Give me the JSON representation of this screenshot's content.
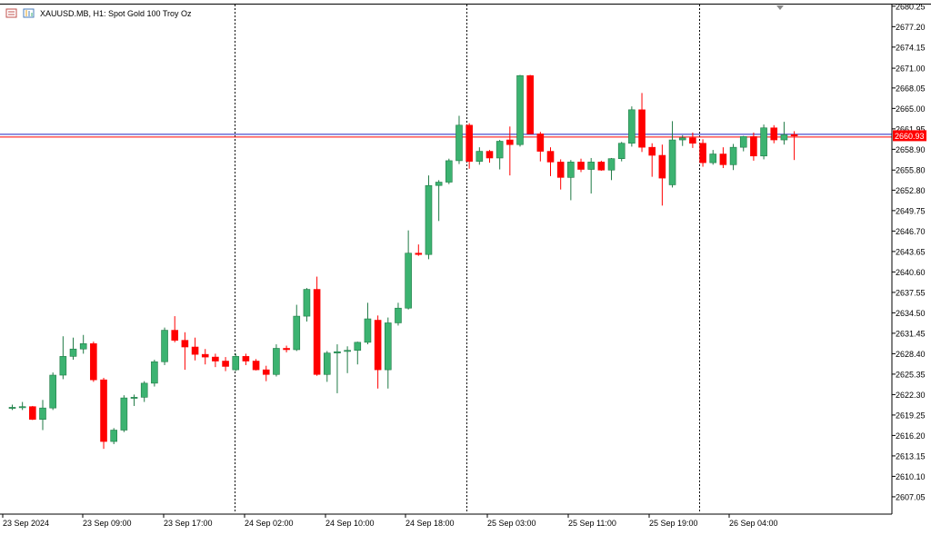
{
  "header": {
    "symbol_label": "XAUUSD.MB, H1:  Spot Gold 100 Troy Oz",
    "icon_name": "chart-window-icon"
  },
  "colors": {
    "bull": "#3cb371",
    "bull_border": "#1f7a45",
    "bear": "#ff0000",
    "grid": "#000000",
    "price_line": "#ff0000",
    "bid_line": "#2020c0",
    "price_tag_bg": "#ff0000",
    "price_tag_text": "#ffffff"
  },
  "current_price": "2660.93",
  "chart_data": {
    "type": "candlestick",
    "timeframe": "H1",
    "ylim": [
      2604.6,
      2680.5
    ],
    "y_ticks": [
      "2680.25",
      "2677.20",
      "2674.15",
      "2671.00",
      "2668.05",
      "2665.00",
      "2661.95",
      "2658.90",
      "2655.80",
      "2652.80",
      "2649.75",
      "2646.70",
      "2643.65",
      "2640.60",
      "2637.55",
      "2634.50",
      "2631.45",
      "2628.40",
      "2625.35",
      "2622.30",
      "2619.25",
      "2616.20",
      "2613.15",
      "2610.10",
      "2607.05"
    ],
    "x_ticks": [
      "23 Sep 2024",
      "23 Sep 09:00",
      "23 Sep 17:00",
      "24 Sep 02:00",
      "24 Sep 10:00",
      "24 Sep 18:00",
      "25 Sep 03:00",
      "25 Sep 11:00",
      "25 Sep 19:00",
      "26 Sep 04:00"
    ],
    "separators": [
      "24 Sep",
      "25 Sep",
      "26 Sep"
    ],
    "candles": [
      {
        "o": 2620.3,
        "h": 2620.8,
        "l": 2620.0,
        "c": 2620.4
      },
      {
        "o": 2620.4,
        "h": 2621.2,
        "l": 2620.0,
        "c": 2620.5
      },
      {
        "o": 2620.5,
        "h": 2620.6,
        "l": 2618.5,
        "c": 2618.6
      },
      {
        "o": 2618.6,
        "h": 2621.5,
        "l": 2617.0,
        "c": 2620.3
      },
      {
        "o": 2620.3,
        "h": 2625.6,
        "l": 2620.0,
        "c": 2625.2
      },
      {
        "o": 2625.2,
        "h": 2631.0,
        "l": 2624.6,
        "c": 2628.0
      },
      {
        "o": 2628.0,
        "h": 2630.8,
        "l": 2627.5,
        "c": 2629.1
      },
      {
        "o": 2629.1,
        "h": 2631.2,
        "l": 2628.4,
        "c": 2629.9
      },
      {
        "o": 2629.9,
        "h": 2630.2,
        "l": 2624.2,
        "c": 2624.5
      },
      {
        "o": 2624.5,
        "h": 2624.8,
        "l": 2614.2,
        "c": 2615.3
      },
      {
        "o": 2615.3,
        "h": 2617.3,
        "l": 2614.9,
        "c": 2617.0
      },
      {
        "o": 2617.0,
        "h": 2622.2,
        "l": 2616.7,
        "c": 2621.8
      },
      {
        "o": 2621.8,
        "h": 2622.3,
        "l": 2620.6,
        "c": 2621.9
      },
      {
        "o": 2621.9,
        "h": 2624.3,
        "l": 2621.2,
        "c": 2624.0
      },
      {
        "o": 2624.0,
        "h": 2627.5,
        "l": 2623.5,
        "c": 2627.2
      },
      {
        "o": 2627.2,
        "h": 2632.3,
        "l": 2626.7,
        "c": 2631.9
      },
      {
        "o": 2631.9,
        "h": 2634.0,
        "l": 2630.1,
        "c": 2630.4
      },
      {
        "o": 2630.4,
        "h": 2631.6,
        "l": 2626.0,
        "c": 2629.4
      },
      {
        "o": 2629.4,
        "h": 2630.8,
        "l": 2627.4,
        "c": 2628.3
      },
      {
        "o": 2628.3,
        "h": 2629.1,
        "l": 2626.8,
        "c": 2627.9
      },
      {
        "o": 2627.9,
        "h": 2628.4,
        "l": 2626.4,
        "c": 2627.3
      },
      {
        "o": 2627.3,
        "h": 2627.9,
        "l": 2625.8,
        "c": 2626.5
      },
      {
        "o": 2626.0,
        "h": 2628.4,
        "l": 2625.8,
        "c": 2628.0
      },
      {
        "o": 2628.0,
        "h": 2628.4,
        "l": 2626.7,
        "c": 2627.3
      },
      {
        "o": 2627.3,
        "h": 2627.6,
        "l": 2625.9,
        "c": 2626.0
      },
      {
        "o": 2626.0,
        "h": 2626.6,
        "l": 2624.3,
        "c": 2625.3
      },
      {
        "o": 2625.3,
        "h": 2629.8,
        "l": 2625.0,
        "c": 2629.2
      },
      {
        "o": 2629.2,
        "h": 2629.6,
        "l": 2628.6,
        "c": 2629.0
      },
      {
        "o": 2629.0,
        "h": 2635.7,
        "l": 2628.8,
        "c": 2634.0
      },
      {
        "o": 2634.0,
        "h": 2638.2,
        "l": 2633.2,
        "c": 2638.0
      },
      {
        "o": 2638.0,
        "h": 2639.9,
        "l": 2625.1,
        "c": 2625.3
      },
      {
        "o": 2625.3,
        "h": 2628.8,
        "l": 2624.2,
        "c": 2628.5
      },
      {
        "o": 2628.5,
        "h": 2629.8,
        "l": 2622.5,
        "c": 2628.7
      },
      {
        "o": 2628.8,
        "h": 2629.5,
        "l": 2625.5,
        "c": 2628.9
      },
      {
        "o": 2628.9,
        "h": 2630.2,
        "l": 2626.8,
        "c": 2630.1
      },
      {
        "o": 2630.1,
        "h": 2636.0,
        "l": 2629.8,
        "c": 2633.6
      },
      {
        "o": 2633.4,
        "h": 2634.1,
        "l": 2623.2,
        "c": 2626.0
      },
      {
        "o": 2626.0,
        "h": 2633.8,
        "l": 2623.2,
        "c": 2633.0
      },
      {
        "o": 2633.0,
        "h": 2636.0,
        "l": 2632.6,
        "c": 2635.2
      },
      {
        "o": 2635.2,
        "h": 2646.8,
        "l": 2635.0,
        "c": 2643.4
      },
      {
        "o": 2643.4,
        "h": 2644.7,
        "l": 2643.0,
        "c": 2643.2
      },
      {
        "o": 2643.2,
        "h": 2655.0,
        "l": 2642.5,
        "c": 2653.5
      },
      {
        "o": 2653.5,
        "h": 2654.3,
        "l": 2648.2,
        "c": 2654.0
      },
      {
        "o": 2654.0,
        "h": 2657.5,
        "l": 2653.7,
        "c": 2657.2
      },
      {
        "o": 2657.2,
        "h": 2663.9,
        "l": 2656.7,
        "c": 2662.5
      },
      {
        "o": 2662.5,
        "h": 2662.8,
        "l": 2656.0,
        "c": 2657.1
      },
      {
        "o": 2657.1,
        "h": 2659.2,
        "l": 2656.6,
        "c": 2658.6
      },
      {
        "o": 2658.6,
        "h": 2658.8,
        "l": 2656.9,
        "c": 2657.6
      },
      {
        "o": 2657.6,
        "h": 2660.3,
        "l": 2655.9,
        "c": 2660.1
      },
      {
        "o": 2660.3,
        "h": 2662.3,
        "l": 2655.0,
        "c": 2659.6
      },
      {
        "o": 2659.6,
        "h": 2670.0,
        "l": 2659.3,
        "c": 2669.9
      },
      {
        "o": 2669.9,
        "h": 2670.0,
        "l": 2661.2,
        "c": 2661.2
      },
      {
        "o": 2661.2,
        "h": 2661.5,
        "l": 2657.1,
        "c": 2658.6
      },
      {
        "o": 2658.6,
        "h": 2659.2,
        "l": 2654.9,
        "c": 2657.0
      },
      {
        "o": 2657.0,
        "h": 2657.4,
        "l": 2652.9,
        "c": 2654.7
      },
      {
        "o": 2654.7,
        "h": 2657.3,
        "l": 2651.3,
        "c": 2657.0
      },
      {
        "o": 2657.0,
        "h": 2657.5,
        "l": 2655.5,
        "c": 2655.9
      },
      {
        "o": 2655.9,
        "h": 2657.6,
        "l": 2652.3,
        "c": 2657.0
      },
      {
        "o": 2657.0,
        "h": 2657.2,
        "l": 2655.7,
        "c": 2655.8
      },
      {
        "o": 2655.8,
        "h": 2657.6,
        "l": 2654.3,
        "c": 2657.5
      },
      {
        "o": 2657.5,
        "h": 2660.0,
        "l": 2657.1,
        "c": 2659.8
      },
      {
        "o": 2659.8,
        "h": 2665.3,
        "l": 2659.3,
        "c": 2664.8
      },
      {
        "o": 2664.8,
        "h": 2667.3,
        "l": 2658.5,
        "c": 2659.2
      },
      {
        "o": 2659.2,
        "h": 2659.8,
        "l": 2654.8,
        "c": 2658.0
      },
      {
        "o": 2658.0,
        "h": 2659.6,
        "l": 2650.5,
        "c": 2654.6
      },
      {
        "o": 2653.6,
        "h": 2663.1,
        "l": 2653.2,
        "c": 2660.3
      },
      {
        "o": 2660.3,
        "h": 2661.0,
        "l": 2659.4,
        "c": 2660.6
      },
      {
        "o": 2660.6,
        "h": 2661.4,
        "l": 2659.1,
        "c": 2659.8
      },
      {
        "o": 2659.8,
        "h": 2660.4,
        "l": 2656.3,
        "c": 2656.9
      },
      {
        "o": 2656.9,
        "h": 2658.8,
        "l": 2656.6,
        "c": 2658.2
      },
      {
        "o": 2658.2,
        "h": 2659.2,
        "l": 2656.1,
        "c": 2656.6
      },
      {
        "o": 2656.6,
        "h": 2659.7,
        "l": 2655.8,
        "c": 2659.2
      },
      {
        "o": 2659.2,
        "h": 2660.9,
        "l": 2658.6,
        "c": 2660.8
      },
      {
        "o": 2660.8,
        "h": 2661.4,
        "l": 2657.2,
        "c": 2657.9
      },
      {
        "o": 2657.9,
        "h": 2662.6,
        "l": 2657.4,
        "c": 2662.1
      },
      {
        "o": 2662.1,
        "h": 2662.5,
        "l": 2659.8,
        "c": 2660.3
      },
      {
        "o": 2660.3,
        "h": 2663.0,
        "l": 2659.6,
        "c": 2661.1
      },
      {
        "o": 2661.1,
        "h": 2661.6,
        "l": 2657.3,
        "c": 2660.9
      }
    ]
  }
}
